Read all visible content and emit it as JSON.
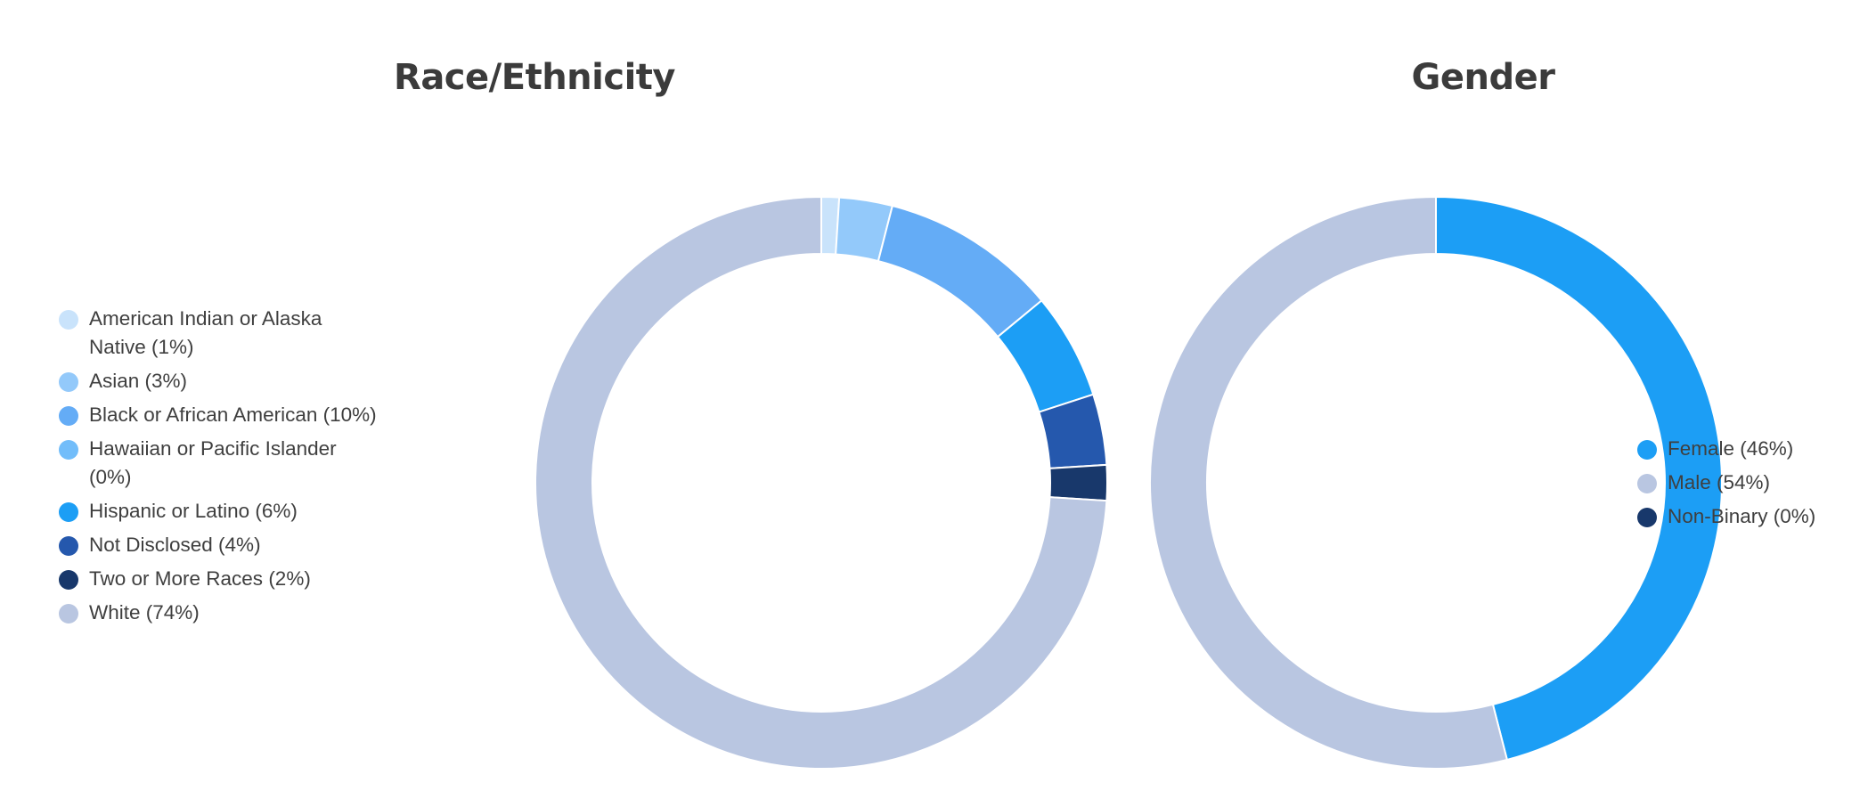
{
  "chart_data": [
    {
      "type": "pie",
      "title": "Race/Ethnicity",
      "series": [
        {
          "label": "American Indian or Alaska Native (1%)",
          "value": 1,
          "color": "#c9e3fb"
        },
        {
          "label": "Asian (3%)",
          "value": 3,
          "color": "#93c9fa"
        },
        {
          "label": "Black or African American (10%)",
          "value": 10,
          "color": "#64acf6"
        },
        {
          "label": "Hawaiian or Pacific Islander (0%)",
          "value": 0,
          "color": "#72bdfa"
        },
        {
          "label": "Hispanic or Latino (6%)",
          "value": 6,
          "color": "#1c9ef5"
        },
        {
          "label": "Not Disclosed (4%)",
          "value": 4,
          "color": "#2558ad"
        },
        {
          "label": "Two or More Races (2%)",
          "value": 2,
          "color": "#18386b"
        },
        {
          "label": "White (74%)",
          "value": 74,
          "color": "#b9c6e1"
        }
      ],
      "legend_position": "left"
    },
    {
      "type": "pie",
      "title": "Gender",
      "series": [
        {
          "label": "Female (46%)",
          "value": 46,
          "color": "#1c9ef5"
        },
        {
          "label": "Male (54%)",
          "value": 54,
          "color": "#b9c6e1"
        },
        {
          "label": "Non-Binary (0%)",
          "value": 0,
          "color": "#18386b"
        }
      ],
      "legend_position": "right"
    }
  ]
}
